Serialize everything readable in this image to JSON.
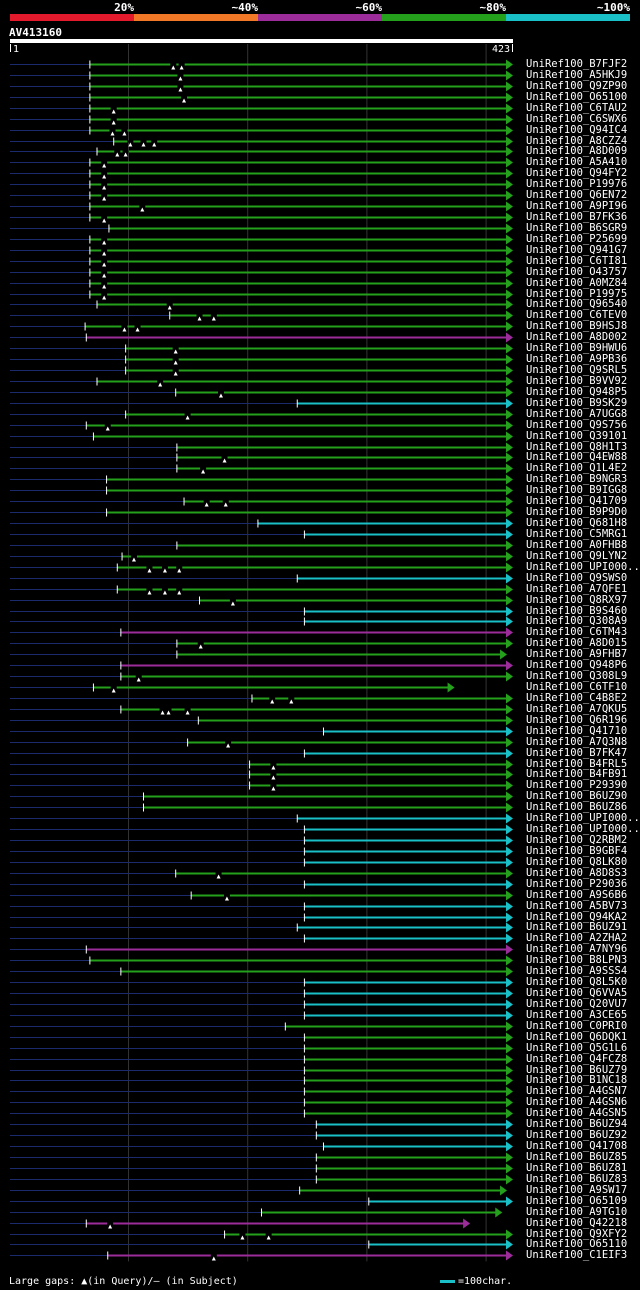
{
  "query": {
    "name": "AV413160",
    "start": "1",
    "end": "423",
    "length": 423
  },
  "legend": {
    "labels": [
      "20%",
      "~40%",
      "~60%",
      "~80%",
      "~100%"
    ],
    "colors": [
      "#e21a2c",
      "#f07826",
      "#9b2c9a",
      "#24a01c",
      "#19c0c8"
    ]
  },
  "footer": {
    "gaps_text": "Large gaps: ▲(in Query)/— (in Subject)",
    "scale_text": "=100char."
  },
  "chart_data": {
    "type": "alignment",
    "title": "AV413160",
    "x_axis": {
      "min": 1,
      "max": 423,
      "gridlines": [
        100,
        200,
        300,
        400
      ]
    },
    "hits": [
      {
        "name": "UniRef100_B7FJF2",
        "start": 68,
        "end": 423,
        "color": "green",
        "gaps": [
          138,
          145
        ]
      },
      {
        "name": "UniRef100_A5HKJ9",
        "start": 68,
        "end": 423,
        "color": "green",
        "gaps": [
          144
        ]
      },
      {
        "name": "UniRef100_Q9ZP90",
        "start": 68,
        "end": 423,
        "color": "green",
        "gaps": [
          144
        ]
      },
      {
        "name": "UniRef100_O65100",
        "start": 68,
        "end": 423,
        "color": "green",
        "gaps": [
          147
        ]
      },
      {
        "name": "UniRef100_C6TAU2",
        "start": 68,
        "end": 423,
        "color": "green",
        "gaps": [
          88
        ]
      },
      {
        "name": "UniRef100_C6SWX6",
        "start": 68,
        "end": 423,
        "color": "green",
        "gaps": [
          88
        ]
      },
      {
        "name": "UniRef100_Q94IC4",
        "start": 68,
        "end": 423,
        "color": "green",
        "gaps": [
          87,
          97
        ]
      },
      {
        "name": "UniRef100_A8CZZ4",
        "start": 88,
        "end": 423,
        "color": "green",
        "gaps": [
          102,
          113,
          122
        ]
      },
      {
        "name": "UniRef100_A8D009",
        "start": 74,
        "end": 423,
        "color": "green",
        "gaps": [
          91,
          98
        ]
      },
      {
        "name": "UniRef100_A5A410",
        "start": 68,
        "end": 423,
        "color": "green",
        "gaps": [
          80
        ]
      },
      {
        "name": "UniRef100_Q94FY2",
        "start": 68,
        "end": 423,
        "color": "green",
        "gaps": [
          80
        ]
      },
      {
        "name": "UniRef100_P19976",
        "start": 68,
        "end": 423,
        "color": "green",
        "gaps": [
          80
        ]
      },
      {
        "name": "UniRef100_Q6EN72",
        "start": 68,
        "end": 423,
        "color": "green",
        "gaps": [
          80
        ]
      },
      {
        "name": "UniRef100_A9PI96",
        "start": 68,
        "end": 423,
        "color": "green",
        "gaps": [
          112
        ]
      },
      {
        "name": "UniRef100_B7FK36",
        "start": 68,
        "end": 423,
        "color": "green",
        "gaps": [
          80
        ]
      },
      {
        "name": "UniRef100_B6SGR9",
        "start": 84,
        "end": 423,
        "color": "green",
        "gaps": []
      },
      {
        "name": "UniRef100_P25699",
        "start": 68,
        "end": 423,
        "color": "green",
        "gaps": [
          80
        ]
      },
      {
        "name": "UniRef100_Q941G7",
        "start": 68,
        "end": 423,
        "color": "green",
        "gaps": [
          80
        ]
      },
      {
        "name": "UniRef100_C6TI81",
        "start": 68,
        "end": 423,
        "color": "green",
        "gaps": [
          80
        ]
      },
      {
        "name": "UniRef100_O43757",
        "start": 68,
        "end": 423,
        "color": "green",
        "gaps": [
          80
        ]
      },
      {
        "name": "UniRef100_A0MZ84",
        "start": 68,
        "end": 423,
        "color": "green",
        "gaps": [
          80
        ]
      },
      {
        "name": "UniRef100_P19975",
        "start": 68,
        "end": 423,
        "color": "green",
        "gaps": [
          80
        ]
      },
      {
        "name": "UniRef100_Q96540",
        "start": 74,
        "end": 423,
        "color": "green",
        "gaps": [
          135
        ]
      },
      {
        "name": "UniRef100_C6TEV0",
        "start": 135,
        "end": 423,
        "color": "green",
        "gaps": [
          160,
          172
        ]
      },
      {
        "name": "UniRef100_B9HSJ8",
        "start": 64,
        "end": 423,
        "color": "green",
        "gaps": [
          97,
          108
        ]
      },
      {
        "name": "UniRef100_A8D002",
        "start": 65,
        "end": 423,
        "color": "purple",
        "gaps": []
      },
      {
        "name": "UniRef100_B9HWU6",
        "start": 98,
        "end": 423,
        "color": "green",
        "gaps": [
          140
        ]
      },
      {
        "name": "UniRef100_A9PB36",
        "start": 98,
        "end": 423,
        "color": "green",
        "gaps": [
          140
        ]
      },
      {
        "name": "UniRef100_Q9SRL5",
        "start": 98,
        "end": 423,
        "color": "green",
        "gaps": [
          140
        ]
      },
      {
        "name": "UniRef100_B9VV92",
        "start": 74,
        "end": 423,
        "color": "green",
        "gaps": [
          127
        ]
      },
      {
        "name": "UniRef100_Q948P5",
        "start": 140,
        "end": 423,
        "color": "green",
        "gaps": [
          178
        ]
      },
      {
        "name": "UniRef100_B9SK29",
        "start": 242,
        "end": 423,
        "color": "cyan",
        "gaps": []
      },
      {
        "name": "UniRef100_A7UGG8",
        "start": 98,
        "end": 423,
        "color": "green",
        "gaps": [
          150
        ]
      },
      {
        "name": "UniRef100_Q9S756",
        "start": 65,
        "end": 423,
        "color": "green",
        "gaps": [
          83
        ]
      },
      {
        "name": "UniRef100_Q39101",
        "start": 71,
        "end": 423,
        "color": "green",
        "gaps": []
      },
      {
        "name": "UniRef100_Q8H1T3",
        "start": 141,
        "end": 423,
        "color": "green",
        "gaps": []
      },
      {
        "name": "UniRef100_Q4EW88",
        "start": 141,
        "end": 423,
        "color": "green",
        "gaps": [
          181
        ]
      },
      {
        "name": "UniRef100_Q1L4E2",
        "start": 141,
        "end": 423,
        "color": "green",
        "gaps": [
          163
        ]
      },
      {
        "name": "UniRef100_B9NGR3",
        "start": 82,
        "end": 423,
        "color": "green",
        "gaps": []
      },
      {
        "name": "UniRef100_B9IGG8",
        "start": 82,
        "end": 423,
        "color": "green",
        "gaps": []
      },
      {
        "name": "UniRef100_Q41709",
        "start": 147,
        "end": 423,
        "color": "green",
        "gaps": [
          166,
          182
        ]
      },
      {
        "name": "UniRef100_B9P9D0",
        "start": 82,
        "end": 423,
        "color": "green",
        "gaps": []
      },
      {
        "name": "UniRef100_Q681H8",
        "start": 209,
        "end": 423,
        "color": "cyan",
        "gaps": []
      },
      {
        "name": "UniRef100_C5MRG1",
        "start": 248,
        "end": 423,
        "color": "cyan",
        "gaps": []
      },
      {
        "name": "UniRef100_A0FHB8",
        "start": 141,
        "end": 423,
        "color": "green",
        "gaps": []
      },
      {
        "name": "UniRef100_Q9LYN2",
        "start": 95,
        "end": 423,
        "color": "green",
        "gaps": [
          105
        ]
      },
      {
        "name": "UniRef100_UPI000..",
        "start": 91,
        "end": 423,
        "color": "green",
        "gaps": [
          118,
          131,
          143
        ]
      },
      {
        "name": "UniRef100_Q9SWS0",
        "start": 242,
        "end": 423,
        "color": "cyan",
        "gaps": []
      },
      {
        "name": "UniRef100_A7QFE1",
        "start": 91,
        "end": 423,
        "color": "green",
        "gaps": [
          118,
          131,
          143
        ]
      },
      {
        "name": "UniRef100_Q8RX97",
        "start": 160,
        "end": 423,
        "color": "green",
        "gaps": [
          188
        ]
      },
      {
        "name": "UniRef100_B9S460",
        "start": 248,
        "end": 423,
        "color": "cyan",
        "gaps": []
      },
      {
        "name": "UniRef100_Q308A9",
        "start": 248,
        "end": 423,
        "color": "cyan",
        "gaps": []
      },
      {
        "name": "UniRef100_C6TM43",
        "start": 94,
        "end": 423,
        "color": "purple",
        "gaps": []
      },
      {
        "name": "UniRef100_A8D015",
        "start": 141,
        "end": 423,
        "color": "green",
        "gaps": [
          161
        ]
      },
      {
        "name": "UniRef100_A9FHB7",
        "start": 141,
        "end": 418,
        "color": "green",
        "gaps": []
      },
      {
        "name": "UniRef100_Q948P6",
        "start": 94,
        "end": 423,
        "color": "purple",
        "gaps": []
      },
      {
        "name": "UniRef100_Q308L9",
        "start": 94,
        "end": 423,
        "color": "green",
        "gaps": [
          109
        ]
      },
      {
        "name": "UniRef100_C6TF10",
        "start": 71,
        "end": 374,
        "color": "green",
        "gaps": [
          88
        ]
      },
      {
        "name": "UniRef100_C4B8E2",
        "start": 204,
        "end": 423,
        "color": "green",
        "gaps": [
          221,
          237
        ]
      },
      {
        "name": "UniRef100_A7QKU5",
        "start": 94,
        "end": 423,
        "color": "green",
        "gaps": [
          129,
          134,
          150
        ]
      },
      {
        "name": "UniRef100_Q6R196",
        "start": 159,
        "end": 423,
        "color": "green",
        "gaps": []
      },
      {
        "name": "UniRef100_Q41710",
        "start": 264,
        "end": 423,
        "color": "cyan",
        "gaps": []
      },
      {
        "name": "UniRef100_A7Q3N8",
        "start": 150,
        "end": 423,
        "color": "green",
        "gaps": [
          184
        ]
      },
      {
        "name": "UniRef100_B7FK47",
        "start": 248,
        "end": 423,
        "color": "cyan",
        "gaps": []
      },
      {
        "name": "UniRef100_B4FRL5",
        "start": 202,
        "end": 423,
        "color": "green",
        "gaps": [
          222
        ]
      },
      {
        "name": "UniRef100_B4FB91",
        "start": 202,
        "end": 423,
        "color": "green",
        "gaps": [
          222
        ]
      },
      {
        "name": "UniRef100_P29390",
        "start": 202,
        "end": 423,
        "color": "green",
        "gaps": [
          222
        ]
      },
      {
        "name": "UniRef100_B6UZ90",
        "start": 113,
        "end": 423,
        "color": "green",
        "gaps": []
      },
      {
        "name": "UniRef100_B6UZ86",
        "start": 113,
        "end": 423,
        "color": "green",
        "gaps": []
      },
      {
        "name": "UniRef100_UPI000..",
        "start": 242,
        "end": 423,
        "color": "cyan",
        "gaps": []
      },
      {
        "name": "UniRef100_UPI000..",
        "start": 248,
        "end": 423,
        "color": "cyan",
        "gaps": []
      },
      {
        "name": "UniRef100_Q2RBM2",
        "start": 248,
        "end": 423,
        "color": "cyan",
        "gaps": []
      },
      {
        "name": "UniRef100_B9GBF4",
        "start": 248,
        "end": 423,
        "color": "cyan",
        "gaps": []
      },
      {
        "name": "UniRef100_Q8LK80",
        "start": 248,
        "end": 423,
        "color": "cyan",
        "gaps": []
      },
      {
        "name": "UniRef100_A8D8S3",
        "start": 140,
        "end": 423,
        "color": "green",
        "gaps": [
          176
        ]
      },
      {
        "name": "UniRef100_P29036",
        "start": 248,
        "end": 423,
        "color": "cyan",
        "gaps": []
      },
      {
        "name": "UniRef100_A9S6B6",
        "start": 153,
        "end": 423,
        "color": "green",
        "gaps": [
          183
        ]
      },
      {
        "name": "UniRef100_A5BV73",
        "start": 248,
        "end": 423,
        "color": "cyan",
        "gaps": []
      },
      {
        "name": "UniRef100_Q94KA2",
        "start": 248,
        "end": 423,
        "color": "cyan",
        "gaps": []
      },
      {
        "name": "UniRef100_B6UZ91",
        "start": 242,
        "end": 423,
        "color": "cyan",
        "gaps": []
      },
      {
        "name": "UniRef100_A2ZHA2",
        "start": 248,
        "end": 423,
        "color": "cyan",
        "gaps": []
      },
      {
        "name": "UniRef100_A7NY96",
        "start": 65,
        "end": 423,
        "color": "purple",
        "gaps": []
      },
      {
        "name": "UniRef100_B8LPN3",
        "start": 68,
        "end": 423,
        "color": "green",
        "gaps": []
      },
      {
        "name": "UniRef100_A9SSS4",
        "start": 94,
        "end": 423,
        "color": "green",
        "gaps": []
      },
      {
        "name": "UniRef100_Q8L5K0",
        "start": 248,
        "end": 423,
        "color": "cyan",
        "gaps": []
      },
      {
        "name": "UniRef100_Q6VVA5",
        "start": 248,
        "end": 423,
        "color": "cyan",
        "gaps": []
      },
      {
        "name": "UniRef100_Q20VU7",
        "start": 248,
        "end": 423,
        "color": "cyan",
        "gaps": []
      },
      {
        "name": "UniRef100_A3CE65",
        "start": 248,
        "end": 423,
        "color": "cyan",
        "gaps": []
      },
      {
        "name": "UniRef100_C0PRI0",
        "start": 232,
        "end": 423,
        "color": "green",
        "gaps": []
      },
      {
        "name": "UniRef100_Q6DQK1",
        "start": 248,
        "end": 423,
        "color": "green",
        "gaps": []
      },
      {
        "name": "UniRef100_Q5G1L6",
        "start": 248,
        "end": 423,
        "color": "green",
        "gaps": []
      },
      {
        "name": "UniRef100_Q4FCZ8",
        "start": 248,
        "end": 423,
        "color": "green",
        "gaps": []
      },
      {
        "name": "UniRef100_B6UZ79",
        "start": 248,
        "end": 423,
        "color": "green",
        "gaps": []
      },
      {
        "name": "UniRef100_B1NC18",
        "start": 248,
        "end": 423,
        "color": "green",
        "gaps": []
      },
      {
        "name": "UniRef100_A4GSN7",
        "start": 248,
        "end": 423,
        "color": "green",
        "gaps": []
      },
      {
        "name": "UniRef100_A4GSN6",
        "start": 248,
        "end": 423,
        "color": "green",
        "gaps": []
      },
      {
        "name": "UniRef100_A4GSN5",
        "start": 248,
        "end": 423,
        "color": "green",
        "gaps": []
      },
      {
        "name": "UniRef100_B6UZ94",
        "start": 258,
        "end": 423,
        "color": "cyan",
        "gaps": []
      },
      {
        "name": "UniRef100_B6UZ92",
        "start": 258,
        "end": 423,
        "color": "cyan",
        "gaps": []
      },
      {
        "name": "UniRef100_Q41708",
        "start": 264,
        "end": 423,
        "color": "cyan",
        "gaps": []
      },
      {
        "name": "UniRef100_B6UZ85",
        "start": 258,
        "end": 423,
        "color": "green",
        "gaps": []
      },
      {
        "name": "UniRef100_B6UZ81",
        "start": 258,
        "end": 423,
        "color": "green",
        "gaps": []
      },
      {
        "name": "UniRef100_B6UZ83",
        "start": 258,
        "end": 423,
        "color": "green",
        "gaps": []
      },
      {
        "name": "UniRef100_A9SW17",
        "start": 244,
        "end": 418,
        "color": "green",
        "gaps": []
      },
      {
        "name": "UniRef100_O65109",
        "start": 302,
        "end": 423,
        "color": "cyan",
        "gaps": []
      },
      {
        "name": "UniRef100_A9TG10",
        "start": 212,
        "end": 414,
        "color": "green",
        "gaps": []
      },
      {
        "name": "UniRef100_Q42218",
        "start": 65,
        "end": 387,
        "color": "purple",
        "gaps": [
          85
        ]
      },
      {
        "name": "UniRef100_Q9XFY2",
        "start": 181,
        "end": 423,
        "color": "green",
        "gaps": [
          196,
          218
        ]
      },
      {
        "name": "UniRef100_O65110",
        "start": 302,
        "end": 423,
        "color": "cyan",
        "gaps": []
      },
      {
        "name": "UniRef100_C1EIF3",
        "start": 83,
        "end": 423,
        "color": "purple",
        "gaps": [
          172
        ]
      }
    ]
  }
}
